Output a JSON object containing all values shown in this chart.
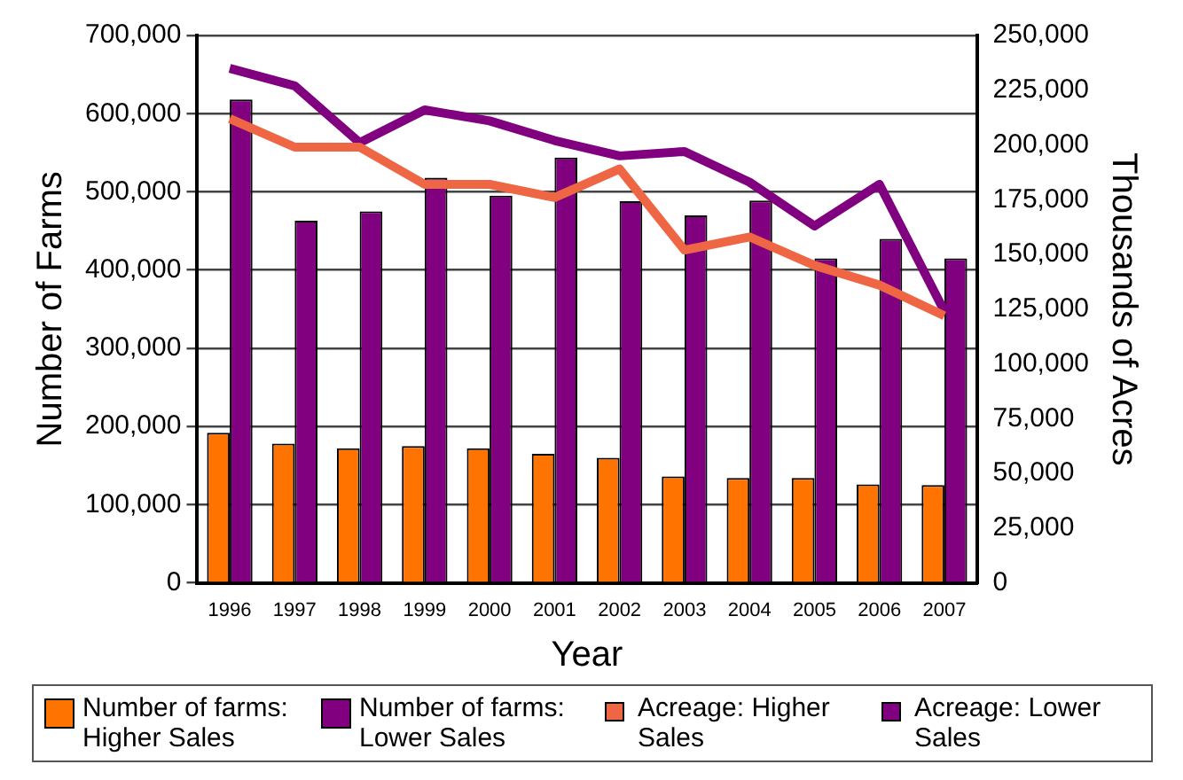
{
  "chart_data": {
    "type": "bar",
    "xlabel": "Year",
    "ylabel": "Number of Farms",
    "y2label": "Thousands of Acres",
    "categories": [
      "1996",
      "1997",
      "1998",
      "1999",
      "2000",
      "2001",
      "2002",
      "2003",
      "2004",
      "2005",
      "2006",
      "2007"
    ],
    "series": [
      {
        "name": "Number of farms: Higher Sales",
        "color": "#ff7300",
        "values": [
          192000,
          178000,
          172000,
          175000,
          172000,
          165000,
          160000,
          136000,
          134000,
          134000,
          126000,
          125000
        ]
      },
      {
        "name": "Number of farms: Lower Sales",
        "color": "#800080",
        "values": [
          618000,
          463000,
          475000,
          518000,
          495000,
          544000,
          488000,
          470000,
          489000,
          415000,
          440000,
          415000
        ]
      },
      {
        "name": "Acreage: Higher Sales",
        "color": "#ee6644",
        "type": "line",
        "axis": "y2",
        "values": [
          212000,
          199000,
          199000,
          182000,
          182000,
          176000,
          189000,
          152000,
          158000,
          145000,
          136000,
          122000
        ]
      },
      {
        "name": "Acreage: Lower Sales",
        "color": "#800080",
        "type": "line",
        "axis": "y2",
        "values": [
          235000,
          227000,
          201000,
          216000,
          211000,
          202000,
          195000,
          197000,
          183000,
          163000,
          182000,
          124000
        ]
      }
    ],
    "ylim": [
      0,
      700000
    ],
    "yticks": [
      0,
      {
        "value": 100000,
        "label": "100,000"
      },
      {
        "value": 200000,
        "label": "200,000"
      },
      {
        "value": 300000,
        "label": "300,000"
      },
      {
        "value": 400000,
        "label": "400,000"
      },
      {
        "value": 500000,
        "label": "500,000"
      },
      {
        "value": 600000,
        "label": "600,000"
      },
      {
        "value": 700000,
        "label": "700,000"
      }
    ],
    "y2lim": [
      0,
      250000
    ],
    "y2ticks": [
      0,
      {
        "value": 25000,
        "label": "25,000"
      },
      {
        "value": 50000,
        "label": "50,000"
      },
      {
        "value": 75000,
        "label": "75,000"
      },
      {
        "value": 100000,
        "label": "100,000"
      },
      {
        "value": 125000,
        "label": "125,000"
      },
      {
        "value": 150000,
        "label": "150,000"
      },
      {
        "value": 175000,
        "label": "175,000"
      },
      {
        "value": 200000,
        "label": "200,000"
      },
      {
        "value": 225000,
        "label": "225,000"
      },
      {
        "value": 250000,
        "label": "250,000"
      }
    ],
    "grid": "y",
    "legend": "bottom",
    "marker": "none",
    "line_style": "solid"
  }
}
